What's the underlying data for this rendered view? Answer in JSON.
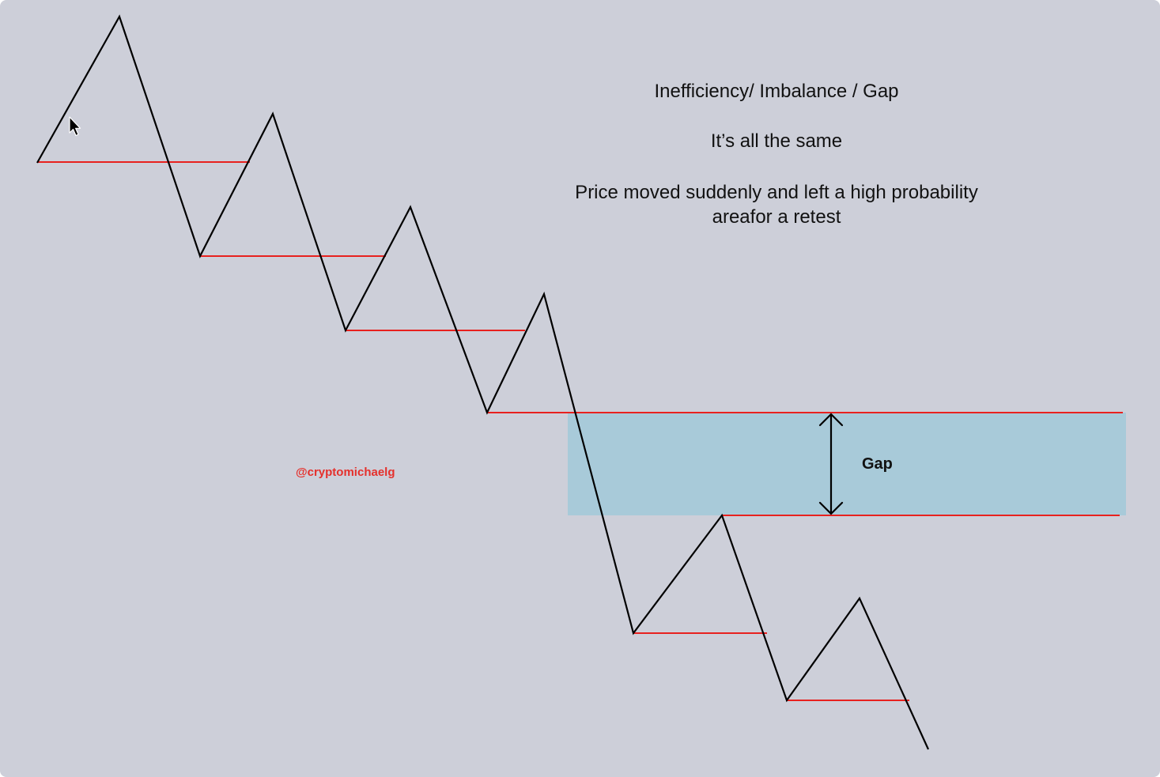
{
  "title": "Inefficiency/ Imbalance / Gap",
  "subtitle": "It’s all the same",
  "description_lines": [
    "Price moved suddenly and left a high probability",
    "areafor a retest"
  ],
  "gap_label": "Gap",
  "watermark": "@cryptomichaelg",
  "colors": {
    "background": "#cdcfd9",
    "price_line": "#000000",
    "level_line": "#e8211f",
    "gap_zone": "#a8cad9",
    "watermark": "#e5302c"
  },
  "icons": [
    "mouse-cursor-icon",
    "double-arrow-icon"
  ]
}
